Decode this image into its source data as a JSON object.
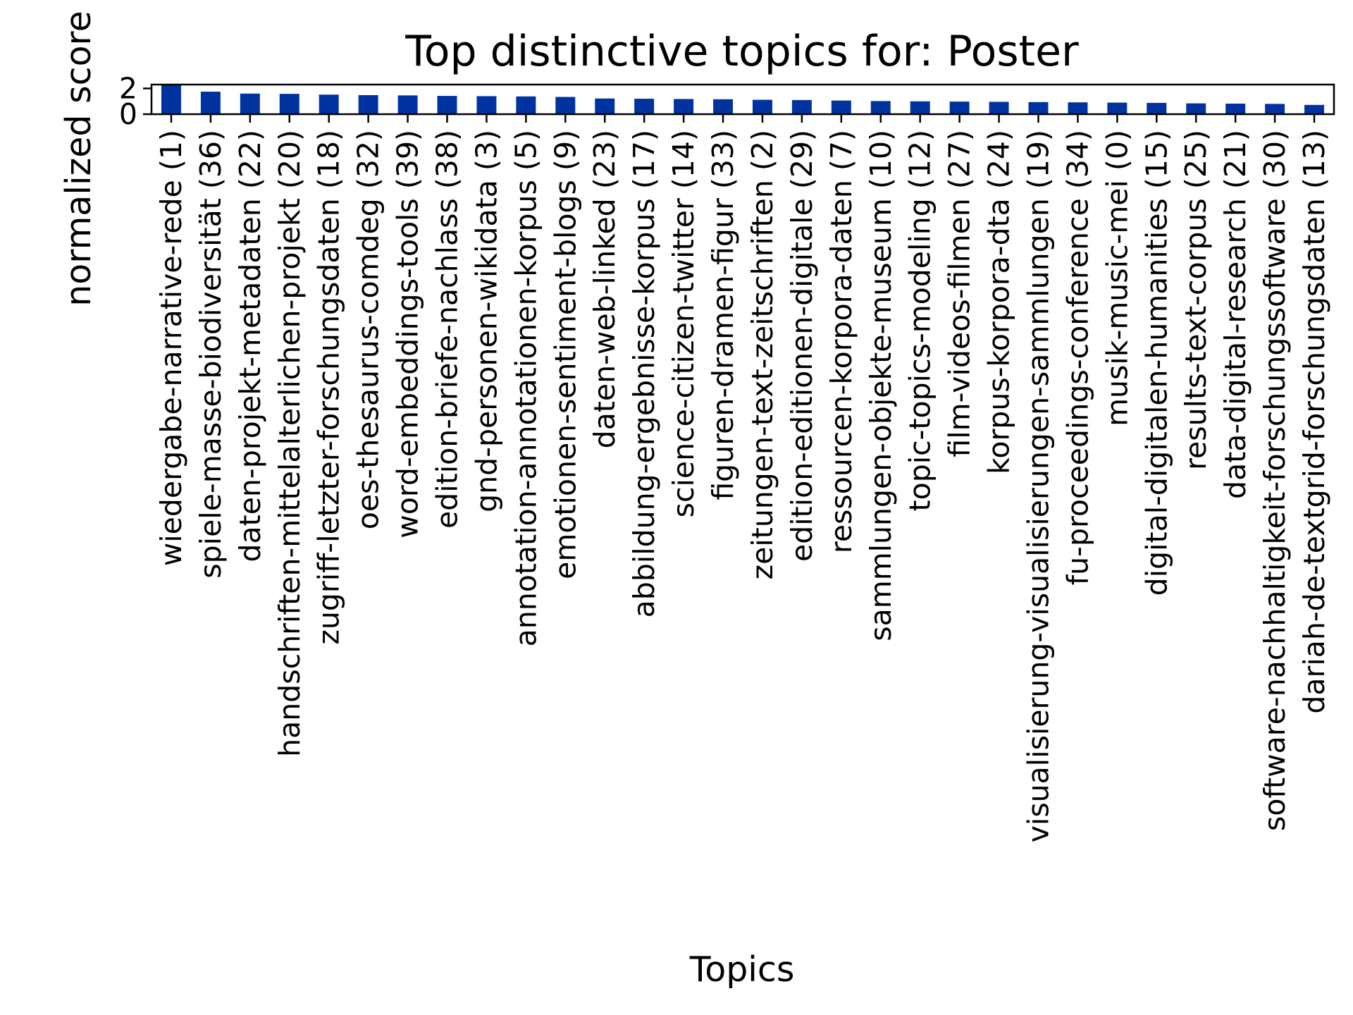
{
  "chart_data": {
    "type": "bar",
    "title": "Top distinctive topics for: Poster",
    "xlabel": "Topics",
    "ylabel": "normalized score",
    "ylim": [
      0,
      2.3
    ],
    "yticks": [
      0,
      2
    ],
    "grid": false,
    "legend": "none",
    "bar_color": "#0033a0",
    "categories": [
      "wiedergabe-narrative-rede (1)",
      "spiele-masse-biodiversität (36)",
      "daten-projekt-metadaten (22)",
      "handschriften-mittelalterlichen-projekt (20)",
      "zugriff-letzter-forschungsdaten (18)",
      "oes-thesaurus-comdeg (32)",
      "word-embeddings-tools (39)",
      "edition-briefe-nachlass (38)",
      "gnd-personen-wikidata (3)",
      "annotation-annotationen-korpus (5)",
      "emotionen-sentiment-blogs (9)",
      "daten-web-linked (23)",
      "abbildung-ergebnisse-korpus (17)",
      "science-citizen-twitter (14)",
      "figuren-dramen-figur (33)",
      "zeitungen-text-zeitschriften (2)",
      "edition-editionen-digitale (29)",
      "ressourcen-korpora-daten (7)",
      "sammlungen-objekte-museum (10)",
      "topic-topics-modeling (12)",
      "film-videos-filmen (27)",
      "korpus-korpora-dta (24)",
      "visualisierung-visualisierungen-sammlungen (19)",
      "fu-proceedings-conference (34)",
      "musik-music-mei (0)",
      "digital-digitalen-humanities (15)",
      "results-text-corpus (25)",
      "data-digital-research (21)",
      "software-nachhaltigkeit-forschungssoftware (30)",
      "dariah-de-textgrid-forschungsdaten (13)"
    ],
    "values": [
      2.3,
      1.75,
      1.6,
      1.58,
      1.52,
      1.48,
      1.46,
      1.42,
      1.4,
      1.38,
      1.34,
      1.22,
      1.2,
      1.18,
      1.16,
      1.12,
      1.1,
      1.06,
      1.02,
      1.0,
      0.98,
      0.96,
      0.94,
      0.92,
      0.9,
      0.88,
      0.84,
      0.82,
      0.8,
      0.72
    ]
  }
}
